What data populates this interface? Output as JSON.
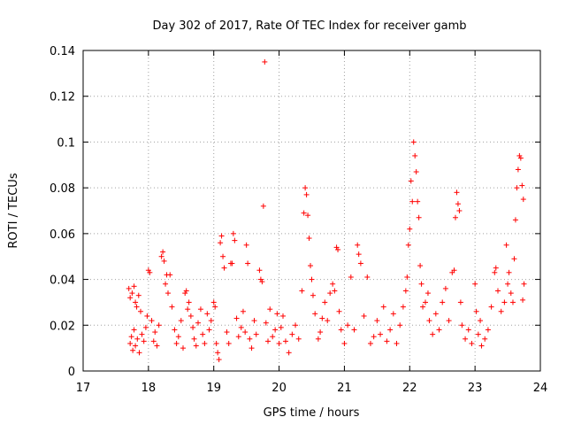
{
  "chart_data": {
    "type": "scatter",
    "title": "Day 302 of 2017, Rate Of TEC Index for receiver gamb",
    "xlabel": "GPS time / hours",
    "ylabel": "ROTI / TECUs",
    "xlim": [
      17,
      24
    ],
    "ylim": [
      0,
      0.14
    ],
    "xticks": [
      17,
      18,
      19,
      20,
      21,
      22,
      23,
      24
    ],
    "xtick_labels": [
      "17",
      "18",
      "19",
      "20",
      "21",
      "22",
      "23",
      "24"
    ],
    "yticks": [
      0,
      0.02,
      0.04,
      0.06,
      0.08,
      0.1,
      0.12,
      0.14
    ],
    "ytick_labels": [
      "0",
      "0.02",
      "0.04",
      "0.06",
      "0.08",
      "0.1",
      "0.12",
      "0.14"
    ],
    "grid": true,
    "marker": "+",
    "color": "#ff0000",
    "series": [
      {
        "name": "ROTI",
        "points": [
          [
            17.7,
            0.036
          ],
          [
            17.72,
            0.032
          ],
          [
            17.75,
            0.034
          ],
          [
            17.78,
            0.037
          ],
          [
            17.8,
            0.03
          ],
          [
            17.82,
            0.028
          ],
          [
            17.85,
            0.033
          ],
          [
            17.88,
            0.026
          ],
          [
            17.72,
            0.012
          ],
          [
            17.74,
            0.015
          ],
          [
            17.76,
            0.009
          ],
          [
            17.78,
            0.018
          ],
          [
            17.8,
            0.011
          ],
          [
            17.83,
            0.014
          ],
          [
            17.86,
            0.008
          ],
          [
            17.9,
            0.016
          ],
          [
            17.93,
            0.013
          ],
          [
            17.96,
            0.019
          ],
          [
            17.98,
            0.024
          ],
          [
            18.0,
            0.044
          ],
          [
            18.02,
            0.043
          ],
          [
            18.05,
            0.022
          ],
          [
            18.08,
            0.013
          ],
          [
            18.1,
            0.017
          ],
          [
            18.13,
            0.011
          ],
          [
            18.16,
            0.02
          ],
          [
            18.2,
            0.05
          ],
          [
            18.22,
            0.052
          ],
          [
            18.24,
            0.048
          ],
          [
            18.26,
            0.038
          ],
          [
            18.28,
            0.042
          ],
          [
            18.3,
            0.034
          ],
          [
            18.33,
            0.042
          ],
          [
            18.36,
            0.028
          ],
          [
            18.4,
            0.018
          ],
          [
            18.43,
            0.012
          ],
          [
            18.46,
            0.015
          ],
          [
            18.5,
            0.022
          ],
          [
            18.53,
            0.01
          ],
          [
            18.56,
            0.034
          ],
          [
            18.58,
            0.035
          ],
          [
            18.6,
            0.027
          ],
          [
            18.62,
            0.03
          ],
          [
            18.65,
            0.024
          ],
          [
            18.68,
            0.019
          ],
          [
            18.7,
            0.014
          ],
          [
            18.73,
            0.011
          ],
          [
            18.76,
            0.021
          ],
          [
            18.8,
            0.027
          ],
          [
            18.83,
            0.016
          ],
          [
            18.86,
            0.012
          ],
          [
            18.9,
            0.025
          ],
          [
            18.93,
            0.018
          ],
          [
            18.96,
            0.022
          ],
          [
            19.0,
            0.03
          ],
          [
            19.02,
            0.028
          ],
          [
            19.04,
            0.012
          ],
          [
            19.06,
            0.008
          ],
          [
            19.08,
            0.005
          ],
          [
            19.1,
            0.056
          ],
          [
            19.12,
            0.059
          ],
          [
            19.14,
            0.05
          ],
          [
            19.16,
            0.045
          ],
          [
            19.2,
            0.017
          ],
          [
            19.23,
            0.012
          ],
          [
            19.26,
            0.047
          ],
          [
            19.28,
            0.047
          ],
          [
            19.3,
            0.06
          ],
          [
            19.32,
            0.057
          ],
          [
            19.35,
            0.023
          ],
          [
            19.38,
            0.015
          ],
          [
            19.42,
            0.019
          ],
          [
            19.45,
            0.026
          ],
          [
            19.48,
            0.017
          ],
          [
            19.5,
            0.055
          ],
          [
            19.52,
            0.047
          ],
          [
            19.55,
            0.014
          ],
          [
            19.58,
            0.01
          ],
          [
            19.62,
            0.022
          ],
          [
            19.65,
            0.016
          ],
          [
            19.7,
            0.044
          ],
          [
            19.72,
            0.04
          ],
          [
            19.74,
            0.039
          ],
          [
            19.76,
            0.072
          ],
          [
            19.78,
            0.135
          ],
          [
            19.8,
            0.021
          ],
          [
            19.83,
            0.013
          ],
          [
            19.86,
            0.027
          ],
          [
            19.9,
            0.015
          ],
          [
            19.94,
            0.018
          ],
          [
            19.97,
            0.025
          ],
          [
            20.0,
            0.012
          ],
          [
            20.03,
            0.019
          ],
          [
            20.06,
            0.024
          ],
          [
            20.1,
            0.013
          ],
          [
            20.15,
            0.008
          ],
          [
            20.2,
            0.016
          ],
          [
            20.25,
            0.02
          ],
          [
            20.3,
            0.014
          ],
          [
            20.35,
            0.035
          ],
          [
            20.38,
            0.069
          ],
          [
            20.4,
            0.08
          ],
          [
            20.42,
            0.077
          ],
          [
            20.44,
            0.068
          ],
          [
            20.46,
            0.058
          ],
          [
            20.48,
            0.046
          ],
          [
            20.5,
            0.04
          ],
          [
            20.52,
            0.033
          ],
          [
            20.55,
            0.025
          ],
          [
            20.6,
            0.014
          ],
          [
            20.63,
            0.017
          ],
          [
            20.66,
            0.023
          ],
          [
            20.7,
            0.03
          ],
          [
            20.74,
            0.022
          ],
          [
            20.78,
            0.034
          ],
          [
            20.82,
            0.038
          ],
          [
            20.85,
            0.035
          ],
          [
            20.88,
            0.054
          ],
          [
            20.9,
            0.053
          ],
          [
            20.92,
            0.026
          ],
          [
            20.95,
            0.018
          ],
          [
            21.0,
            0.012
          ],
          [
            21.05,
            0.02
          ],
          [
            21.1,
            0.041
          ],
          [
            21.15,
            0.018
          ],
          [
            21.2,
            0.055
          ],
          [
            21.22,
            0.051
          ],
          [
            21.25,
            0.047
          ],
          [
            21.3,
            0.024
          ],
          [
            21.35,
            0.041
          ],
          [
            21.4,
            0.012
          ],
          [
            21.45,
            0.015
          ],
          [
            21.5,
            0.022
          ],
          [
            21.55,
            0.016
          ],
          [
            21.6,
            0.028
          ],
          [
            21.65,
            0.013
          ],
          [
            21.7,
            0.018
          ],
          [
            21.75,
            0.025
          ],
          [
            21.8,
            0.012
          ],
          [
            21.85,
            0.02
          ],
          [
            21.9,
            0.028
          ],
          [
            21.94,
            0.035
          ],
          [
            21.96,
            0.041
          ],
          [
            21.98,
            0.055
          ],
          [
            22.0,
            0.062
          ],
          [
            22.02,
            0.083
          ],
          [
            22.04,
            0.074
          ],
          [
            22.06,
            0.1
          ],
          [
            22.08,
            0.094
          ],
          [
            22.1,
            0.087
          ],
          [
            22.12,
            0.074
          ],
          [
            22.14,
            0.067
          ],
          [
            22.16,
            0.046
          ],
          [
            22.18,
            0.038
          ],
          [
            22.2,
            0.028
          ],
          [
            22.24,
            0.03
          ],
          [
            22.28,
            0.034
          ],
          [
            22.3,
            0.022
          ],
          [
            22.35,
            0.016
          ],
          [
            22.4,
            0.025
          ],
          [
            22.45,
            0.018
          ],
          [
            22.5,
            0.03
          ],
          [
            22.55,
            0.036
          ],
          [
            22.6,
            0.022
          ],
          [
            22.65,
            0.043
          ],
          [
            22.68,
            0.044
          ],
          [
            22.7,
            0.067
          ],
          [
            22.72,
            0.078
          ],
          [
            22.74,
            0.073
          ],
          [
            22.76,
            0.07
          ],
          [
            22.78,
            0.03
          ],
          [
            22.8,
            0.02
          ],
          [
            22.85,
            0.014
          ],
          [
            22.9,
            0.018
          ],
          [
            22.95,
            0.012
          ],
          [
            23.0,
            0.038
          ],
          [
            23.02,
            0.026
          ],
          [
            23.05,
            0.016
          ],
          [
            23.08,
            0.022
          ],
          [
            23.1,
            0.011
          ],
          [
            23.15,
            0.014
          ],
          [
            23.2,
            0.018
          ],
          [
            23.25,
            0.028
          ],
          [
            23.3,
            0.043
          ],
          [
            23.32,
            0.045
          ],
          [
            23.35,
            0.035
          ],
          [
            23.4,
            0.026
          ],
          [
            23.45,
            0.03
          ],
          [
            23.48,
            0.055
          ],
          [
            23.5,
            0.038
          ],
          [
            23.52,
            0.043
          ],
          [
            23.55,
            0.034
          ],
          [
            23.58,
            0.03
          ],
          [
            23.6,
            0.049
          ],
          [
            23.62,
            0.066
          ],
          [
            23.64,
            0.08
          ],
          [
            23.66,
            0.088
          ],
          [
            23.68,
            0.094
          ],
          [
            23.7,
            0.093
          ],
          [
            23.72,
            0.081
          ],
          [
            23.74,
            0.075
          ],
          [
            23.75,
            0.038
          ],
          [
            23.73,
            0.031
          ]
        ]
      }
    ]
  }
}
